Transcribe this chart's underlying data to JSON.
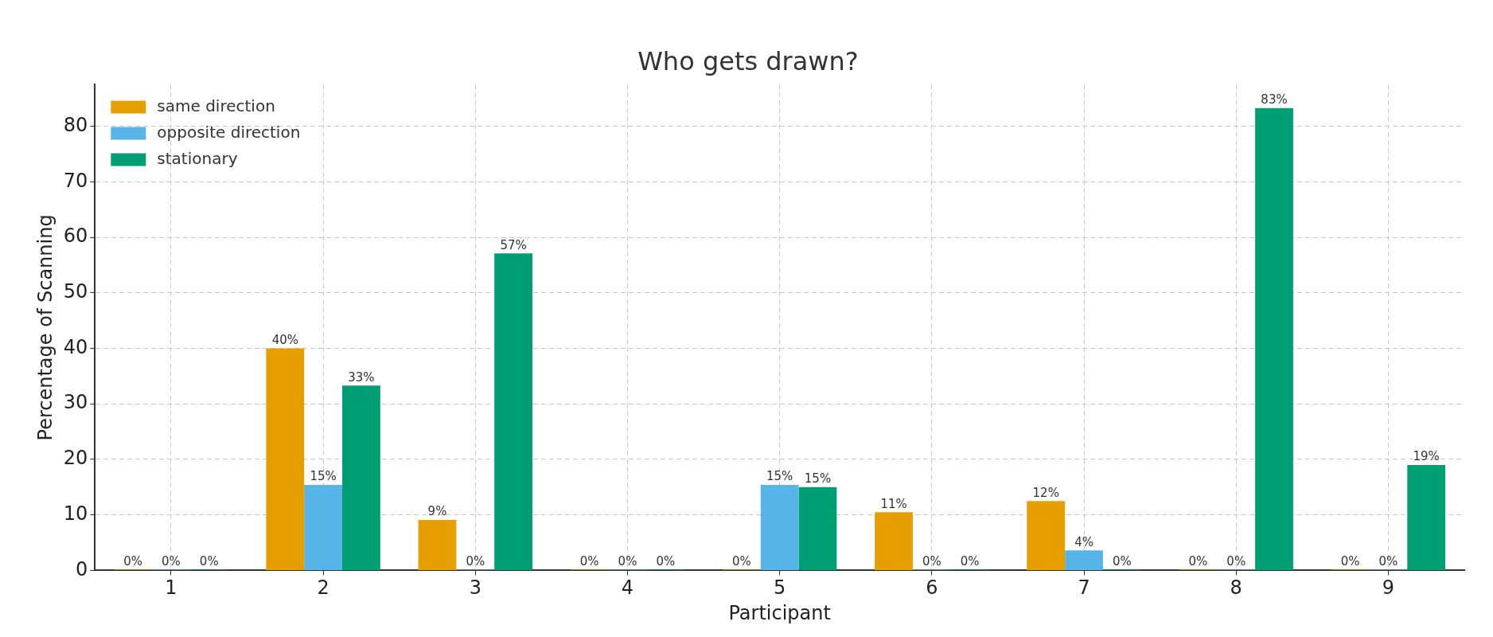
{
  "chart_data": {
    "type": "bar",
    "title": "Who gets drawn?",
    "xlabel": "Participant",
    "ylabel": "Percentage of Scanning",
    "categories": [
      "1",
      "2",
      "3",
      "4",
      "5",
      "6",
      "7",
      "8",
      "9"
    ],
    "series": [
      {
        "name": "same direction",
        "color": "#e69f00",
        "values": [
          0,
          40,
          9.1,
          0,
          0,
          10.5,
          12.5,
          0,
          0
        ],
        "value_labels": [
          "0%",
          "40%",
          "9%",
          "0%",
          "0%",
          "11%",
          "12%",
          "0%",
          "0%"
        ]
      },
      {
        "name": "opposite direction",
        "color": "#56b4e9",
        "values": [
          0,
          15.4,
          0,
          0,
          15.4,
          0,
          3.6,
          0,
          0
        ],
        "value_labels": [
          "0%",
          "15%",
          "0%",
          "0%",
          "15%",
          "0%",
          "4%",
          "0%",
          "0%"
        ]
      },
      {
        "name": "stationary",
        "color": "#009e73",
        "values": [
          0,
          33.3,
          57.1,
          0,
          15,
          0,
          0,
          83.3,
          19
        ],
        "value_labels": [
          "0%",
          "33%",
          "57%",
          "0%",
          "15%",
          "0%",
          "0%",
          "83%",
          "19%"
        ]
      }
    ],
    "ylim": [
      0,
      87.5
    ],
    "yticks": [
      0,
      10,
      20,
      30,
      40,
      50,
      60,
      70,
      80
    ],
    "grid": true,
    "legend": "top left"
  }
}
